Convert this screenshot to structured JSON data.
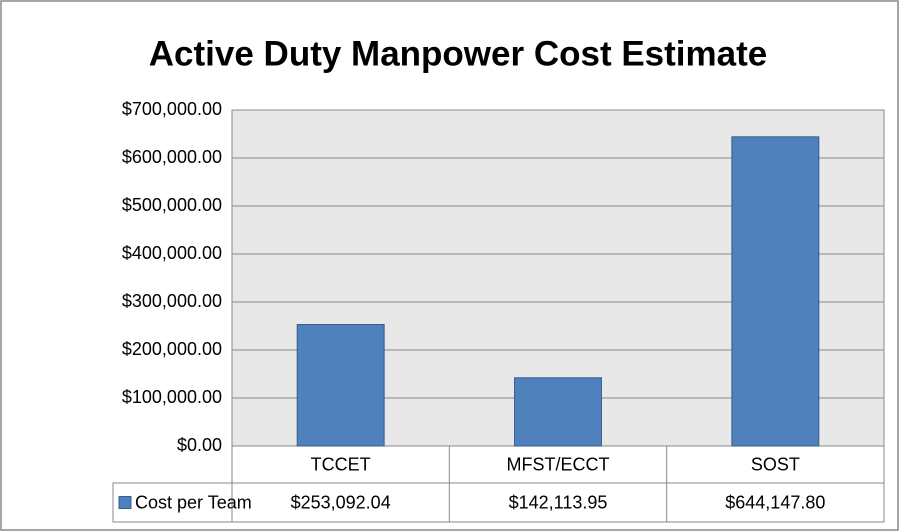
{
  "chart_data": {
    "type": "bar",
    "title": "Active Duty Manpower Cost Estimate",
    "categories": [
      "TCCET",
      "MFST/ECCT",
      "SOST"
    ],
    "series": [
      {
        "name": "Cost per Team",
        "color": "#4f81bd",
        "values": [
          253092.04,
          142113.95,
          644147.8
        ],
        "value_labels": [
          "$253,092.04",
          "$142,113.95",
          "$644,147.80"
        ]
      }
    ],
    "ylim": [
      0,
      700000
    ],
    "yticks": [
      {
        "value": 0,
        "label": "$0.00"
      },
      {
        "value": 100000,
        "label": "$100,000.00"
      },
      {
        "value": 200000,
        "label": "$200,000.00"
      },
      {
        "value": 300000,
        "label": "$300,000.00"
      },
      {
        "value": 400000,
        "label": "$400,000.00"
      },
      {
        "value": 500000,
        "label": "$500,000.00"
      },
      {
        "value": 600000,
        "label": "$600,000.00"
      },
      {
        "value": 700000,
        "label": "$700,000.00"
      }
    ],
    "grid": true
  }
}
